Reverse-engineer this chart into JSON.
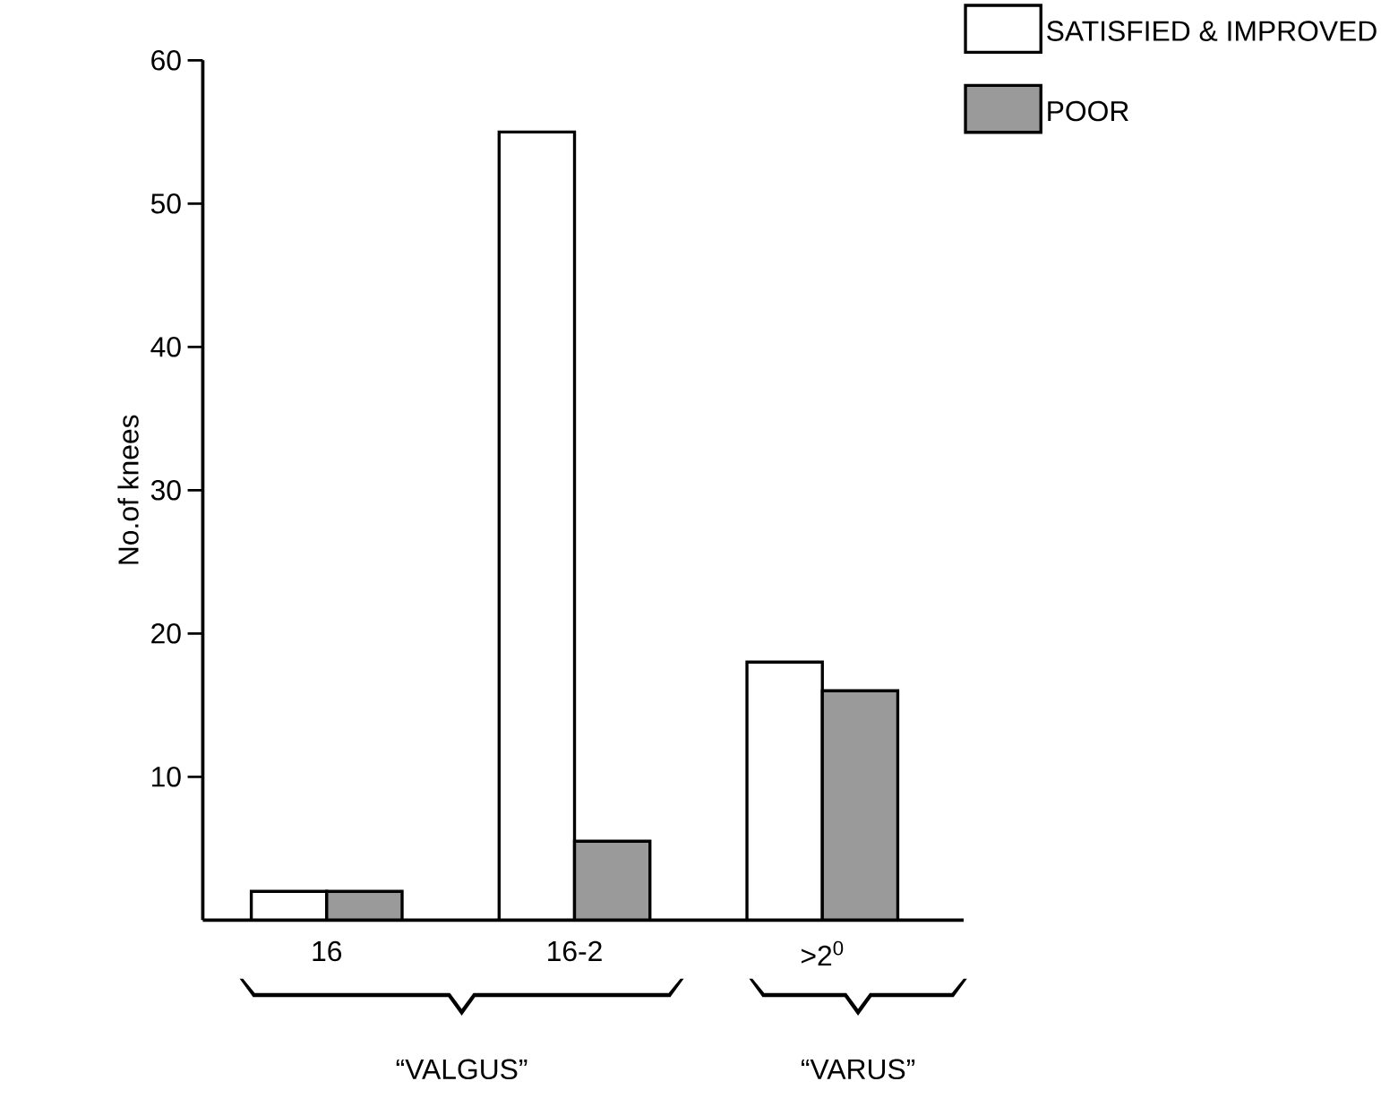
{
  "chart_data": {
    "type": "bar",
    "ylabel": "No.of knees",
    "categories": [
      "16",
      "16-2",
      ">2$^{0}$"
    ],
    "series": [
      {
        "name": "SATISFIED & IMPROVED",
        "color": "#ffffff",
        "values": [
          2,
          55,
          18
        ]
      },
      {
        "name": "POOR",
        "color": "#9a9a9a",
        "values": [
          2,
          5.5,
          16
        ]
      }
    ],
    "ylim": [
      0,
      60
    ],
    "yticks": [
      10,
      20,
      30,
      40,
      50,
      60
    ],
    "legend": "top right",
    "annotations": [
      "“VALGUS”",
      "“VARUS”"
    ]
  }
}
